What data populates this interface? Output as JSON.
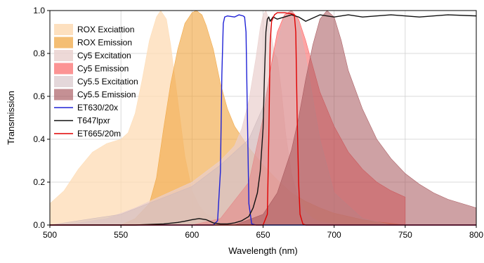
{
  "chart_data": {
    "type": "area",
    "xlabel": "Wavelength (nm)",
    "ylabel": "Transmission",
    "xlim": [
      500,
      800
    ],
    "ylim": [
      0,
      1.0
    ],
    "x_ticks": [
      500,
      550,
      600,
      650,
      700,
      750,
      800
    ],
    "x_tick_labels": [
      "500",
      "550",
      "600",
      "650",
      "700",
      "750",
      "800"
    ],
    "y_ticks": [
      0,
      0.2,
      0.4,
      0.6,
      0.8,
      1.0
    ],
    "y_tick_labels": [
      "0.0",
      "0.2",
      "0.4",
      "0.6",
      "0.8",
      "1.0"
    ],
    "grid": true,
    "legend_position": "top-left",
    "series": [
      {
        "name": "ROX Exciattion",
        "kind": "fill",
        "color": "#fddbb4",
        "opacity": 0.75,
        "x": [
          500,
          510,
          520,
          530,
          540,
          550,
          555,
          560,
          565,
          570,
          575,
          578,
          582,
          585,
          590,
          595,
          600,
          605,
          610,
          620,
          630,
          640,
          650,
          660,
          670
        ],
        "y": [
          0.1,
          0.16,
          0.26,
          0.34,
          0.38,
          0.4,
          0.43,
          0.52,
          0.68,
          0.86,
          0.97,
          1.0,
          0.96,
          0.84,
          0.58,
          0.32,
          0.16,
          0.09,
          0.05,
          0.025,
          0.012,
          0.006,
          0.003,
          0.001,
          0.0
        ]
      },
      {
        "name": "ROX Emission",
        "kind": "fill",
        "color": "#f0a53f",
        "opacity": 0.62,
        "x": [
          550,
          560,
          570,
          575,
          580,
          585,
          590,
          595,
          600,
          603,
          607,
          610,
          615,
          620,
          625,
          630,
          640,
          650,
          660,
          670,
          680,
          690,
          700,
          710,
          720,
          730,
          740,
          750
        ],
        "y": [
          0.0,
          0.03,
          0.1,
          0.22,
          0.45,
          0.66,
          0.82,
          0.94,
          0.99,
          1.0,
          0.98,
          0.93,
          0.82,
          0.66,
          0.54,
          0.46,
          0.36,
          0.28,
          0.21,
          0.15,
          0.11,
          0.08,
          0.055,
          0.04,
          0.025,
          0.015,
          0.008,
          0.0
        ]
      },
      {
        "name": "Cy5 Excitation",
        "kind": "fill",
        "color": "#e9cfcd",
        "opacity": 0.7,
        "x": [
          500,
          520,
          540,
          560,
          580,
          600,
          610,
          620,
          630,
          635,
          640,
          645,
          648,
          650,
          652,
          654,
          656,
          658,
          660,
          663,
          666,
          670,
          675,
          680,
          685,
          690,
          700,
          710,
          720,
          730
        ],
        "y": [
          0.0,
          0.01,
          0.03,
          0.08,
          0.14,
          0.2,
          0.25,
          0.3,
          0.37,
          0.45,
          0.58,
          0.78,
          0.92,
          0.98,
          1.0,
          0.96,
          0.88,
          0.8,
          0.78,
          0.62,
          0.42,
          0.24,
          0.12,
          0.06,
          0.03,
          0.015,
          0.005,
          0.002,
          0.0,
          0.0
        ]
      },
      {
        "name": "Cy5 Emission",
        "kind": "fill",
        "color": "#fa5a5a",
        "opacity": 0.55,
        "x": [
          600,
          620,
          640,
          650,
          655,
          660,
          665,
          670,
          675,
          680,
          685,
          690,
          700,
          710,
          720,
          730,
          740,
          750
        ],
        "y": [
          0.0,
          0.03,
          0.2,
          0.5,
          0.72,
          0.9,
          0.98,
          1.0,
          0.96,
          0.86,
          0.74,
          0.62,
          0.46,
          0.34,
          0.26,
          0.2,
          0.16,
          0.13
        ]
      },
      {
        "name": "Cy5.5 Excitation",
        "kind": "fill",
        "color": "#cdb7bb",
        "opacity": 0.45,
        "x": [
          500,
          550,
          600,
          620,
          640,
          650,
          660,
          665,
          670,
          675,
          680,
          690,
          700,
          720,
          740
        ],
        "y": [
          0.0,
          0.05,
          0.18,
          0.28,
          0.4,
          0.55,
          0.85,
          0.97,
          1.0,
          0.94,
          0.78,
          0.4,
          0.15,
          0.03,
          0.0
        ]
      },
      {
        "name": "Cy5.5 Emission",
        "kind": "fill",
        "color": "#a6545a",
        "opacity": 0.55,
        "x": [
          630,
          650,
          660,
          670,
          675,
          680,
          685,
          690,
          695,
          700,
          705,
          710,
          720,
          730,
          740,
          750,
          760,
          770,
          780,
          790,
          800
        ],
        "y": [
          0.0,
          0.05,
          0.15,
          0.35,
          0.5,
          0.68,
          0.84,
          0.96,
          1.0,
          0.97,
          0.86,
          0.72,
          0.54,
          0.4,
          0.31,
          0.24,
          0.19,
          0.15,
          0.12,
          0.1,
          0.08
        ]
      },
      {
        "name": "ET630/20x",
        "kind": "line",
        "color": "#1f22d6",
        "x": [
          500,
          600,
          615,
          618,
          620,
          621,
          622,
          623,
          625,
          630,
          633,
          636,
          637,
          638,
          639,
          640,
          642,
          645,
          800
        ],
        "y": [
          0.0,
          0.0,
          0.0,
          0.02,
          0.25,
          0.7,
          0.94,
          0.97,
          0.975,
          0.97,
          0.98,
          0.975,
          0.97,
          0.9,
          0.5,
          0.1,
          0.005,
          0.0,
          0.0
        ]
      },
      {
        "name": "T647lpxr",
        "kind": "line",
        "color": "#111111",
        "x": [
          500,
          560,
          580,
          590,
          595,
          600,
          605,
          610,
          615,
          620,
          625,
          630,
          635,
          640,
          643,
          646,
          648,
          650,
          651,
          652,
          653,
          654,
          655,
          657,
          660,
          665,
          670,
          675,
          680,
          690,
          700,
          710,
          720,
          740,
          760,
          780,
          800
        ],
        "y": [
          0.0,
          0.0,
          0.005,
          0.012,
          0.018,
          0.025,
          0.03,
          0.025,
          0.01,
          0.005,
          0.005,
          0.01,
          0.02,
          0.04,
          0.08,
          0.15,
          0.25,
          0.45,
          0.7,
          0.9,
          0.96,
          0.97,
          0.95,
          0.97,
          0.96,
          0.97,
          0.98,
          0.97,
          0.95,
          0.98,
          0.97,
          0.98,
          0.97,
          0.98,
          0.97,
          0.98,
          0.975
        ]
      },
      {
        "name": "ET665/20m",
        "kind": "line",
        "color": "#e00000",
        "x": [
          500,
          640,
          650,
          653,
          654,
          655,
          656,
          658,
          660,
          665,
          670,
          672,
          673,
          674,
          675,
          676,
          678,
          680,
          800
        ],
        "y": [
          0.0,
          0.0,
          0.0,
          0.05,
          0.4,
          0.85,
          0.95,
          0.98,
          0.99,
          0.99,
          0.985,
          0.98,
          0.9,
          0.5,
          0.2,
          0.05,
          0.005,
          0.0,
          0.0
        ]
      }
    ]
  }
}
